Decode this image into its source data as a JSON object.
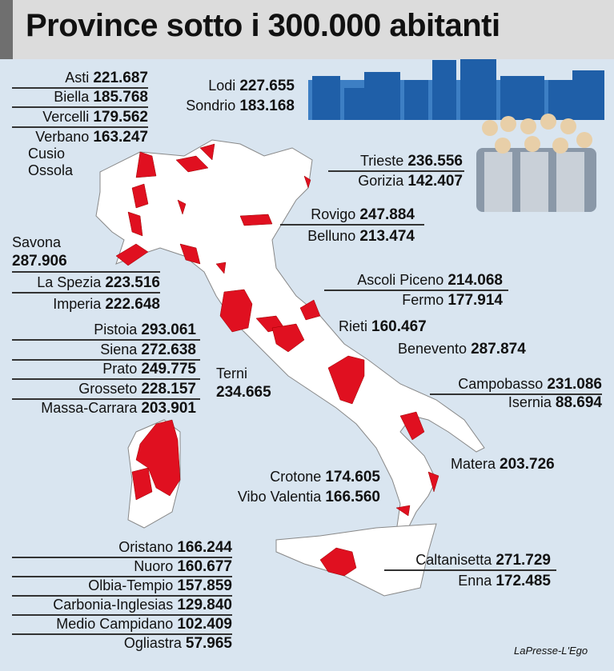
{
  "title": "Province sotto i 300.000 abitanti",
  "groups": [
    {
      "items": [
        {
          "name": "Asti",
          "value": "221.687"
        },
        {
          "name": "Biella",
          "value": "185.768"
        },
        {
          "name": "Vercelli",
          "value": "179.562"
        },
        {
          "name": "Verbano",
          "value": "163.247",
          "extra_lines": [
            "Cusio",
            "Ossola"
          ]
        }
      ]
    },
    {
      "items": [
        {
          "name": "Lodi",
          "value": "227.655"
        },
        {
          "name": "Sondrio",
          "value": "183.168"
        }
      ]
    },
    {
      "items": [
        {
          "name": "Trieste",
          "value": "236.556"
        },
        {
          "name": "Gorizia",
          "value": "142.407"
        }
      ]
    },
    {
      "items": [
        {
          "name": "Rovigo",
          "value": "247.884"
        },
        {
          "name": "Belluno",
          "value": "213.474"
        }
      ]
    },
    {
      "items": [
        {
          "name": "Savona",
          "value": "287.906"
        },
        {
          "name": "La Spezia",
          "value": "223.516"
        },
        {
          "name": "Imperia",
          "value": "222.648"
        }
      ]
    },
    {
      "items": [
        {
          "name": "Ascoli Piceno",
          "value": "214.068"
        },
        {
          "name": "Fermo",
          "value": "177.914"
        }
      ]
    },
    {
      "items": [
        {
          "name": "Rieti",
          "value": "160.467"
        }
      ]
    },
    {
      "items": [
        {
          "name": "Benevento",
          "value": "287.874"
        }
      ]
    },
    {
      "items": [
        {
          "name": "Pistoia",
          "value": "293.061"
        },
        {
          "name": "Siena",
          "value": "272.638"
        },
        {
          "name": "Prato",
          "value": "249.775"
        },
        {
          "name": "Grosseto",
          "value": "228.157"
        },
        {
          "name": "Massa-Carrara",
          "value": "203.901"
        }
      ]
    },
    {
      "items": [
        {
          "name": "Terni",
          "value": "234.665"
        }
      ]
    },
    {
      "items": [
        {
          "name": "Campobasso",
          "value": "231.086"
        },
        {
          "name": "Isernia",
          "value": "88.694"
        }
      ]
    },
    {
      "items": [
        {
          "name": "Matera",
          "value": "203.726"
        }
      ]
    },
    {
      "items": [
        {
          "name": "Crotone",
          "value": "174.605"
        },
        {
          "name": "Vibo Valentia",
          "value": "166.560"
        }
      ]
    },
    {
      "items": [
        {
          "name": "Oristano",
          "value": "166.244"
        },
        {
          "name": "Nuoro",
          "value": "160.677"
        },
        {
          "name": "Olbia-Tempio",
          "value": "157.859"
        },
        {
          "name": "Carbonia-Inglesias",
          "value": "129.840"
        },
        {
          "name": "Medio Campidano",
          "value": "102.409"
        },
        {
          "name": "Ogliastra",
          "value": "57.965"
        }
      ]
    },
    {
      "items": [
        {
          "name": "Caltanisetta",
          "value": "271.729"
        },
        {
          "name": "Enna",
          "value": "172.485"
        }
      ]
    }
  ],
  "credit": "LaPresse-L'Ego"
}
